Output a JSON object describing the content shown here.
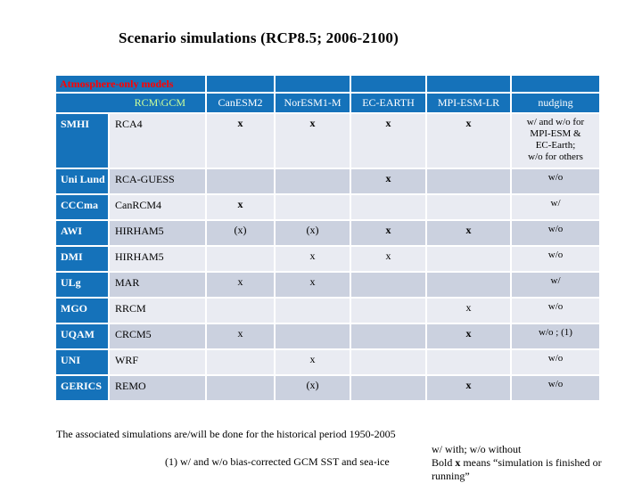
{
  "title": "Scenario simulations (RCP8.5; 2006-2100)",
  "colors": {
    "header_blue": "#1572BA",
    "band_light": "#E9EBF2",
    "band_dark": "#CBD1DF",
    "banner_red": "#FF0000",
    "corner_green": "#CCFF99",
    "text": "#000000"
  },
  "table": {
    "banner": "Atmosphere-only models",
    "corner_label": "RCM\\GCM",
    "gcm_columns": [
      "CanESM2",
      "NorESM1-M",
      "EC-EARTH",
      "MPI-ESM-LR",
      "nudging"
    ],
    "rows": [
      {
        "institute": "SMHI",
        "rcm": "RCA4",
        "cells": [
          {
            "v": "x",
            "bold": true
          },
          {
            "v": "x",
            "bold": true
          },
          {
            "v": "x",
            "bold": true
          },
          {
            "v": "x",
            "bold": true
          }
        ],
        "nudging": "w/ and w/o for\nMPI-ESM &\nEC-Earth;\nw/o for others"
      },
      {
        "institute": "Uni Lund",
        "rcm": "RCA-GUESS",
        "cells": [
          {
            "v": "",
            "bold": false
          },
          {
            "v": "",
            "bold": false
          },
          {
            "v": "x",
            "bold": true
          },
          {
            "v": "",
            "bold": false
          }
        ],
        "nudging": "w/o"
      },
      {
        "institute": "CCCma",
        "rcm": "CanRCM4",
        "cells": [
          {
            "v": "x",
            "bold": true
          },
          {
            "v": "",
            "bold": false
          },
          {
            "v": "",
            "bold": false
          },
          {
            "v": "",
            "bold": false
          }
        ],
        "nudging": "w/"
      },
      {
        "institute": "AWI",
        "rcm": "HIRHAM5",
        "cells": [
          {
            "v": "(x)",
            "bold": false
          },
          {
            "v": "(x)",
            "bold": false
          },
          {
            "v": "x",
            "bold": true
          },
          {
            "v": "x",
            "bold": true
          }
        ],
        "nudging": "w/o"
      },
      {
        "institute": "DMI",
        "rcm": "HIRHAM5",
        "cells": [
          {
            "v": "",
            "bold": false
          },
          {
            "v": "x",
            "bold": false
          },
          {
            "v": "x",
            "bold": false
          },
          {
            "v": "",
            "bold": false
          }
        ],
        "nudging": "w/o"
      },
      {
        "institute": "ULg",
        "rcm": "MAR",
        "cells": [
          {
            "v": "x",
            "bold": false
          },
          {
            "v": "x",
            "bold": false
          },
          {
            "v": "",
            "bold": false
          },
          {
            "v": "",
            "bold": false
          }
        ],
        "nudging": "w/"
      },
      {
        "institute": "MGO",
        "rcm": "RRCM",
        "cells": [
          {
            "v": "",
            "bold": false
          },
          {
            "v": "",
            "bold": false
          },
          {
            "v": "",
            "bold": false
          },
          {
            "v": "x",
            "bold": false
          }
        ],
        "nudging": "w/o"
      },
      {
        "institute": "UQAM",
        "rcm": "CRCM5",
        "cells": [
          {
            "v": "x",
            "bold": false
          },
          {
            "v": "",
            "bold": false
          },
          {
            "v": "",
            "bold": false
          },
          {
            "v": "x",
            "bold": true
          }
        ],
        "nudging": "w/o ; (1)"
      },
      {
        "institute": "UNI",
        "rcm": "WRF",
        "cells": [
          {
            "v": "",
            "bold": false
          },
          {
            "v": "x",
            "bold": false
          },
          {
            "v": "",
            "bold": false
          },
          {
            "v": "",
            "bold": false
          }
        ],
        "nudging": "w/o"
      },
      {
        "institute": "GERICS",
        "rcm": "REMO",
        "cells": [
          {
            "v": "",
            "bold": false
          },
          {
            "v": "(x)",
            "bold": false
          },
          {
            "v": "",
            "bold": false
          },
          {
            "v": "x",
            "bold": true
          }
        ],
        "nudging": "w/o"
      }
    ]
  },
  "notes": {
    "historical": "The associated simulations are/will be done for the historical period 1950-2005",
    "footnote": "(1) w/ and w/o bias-corrected GCM SST and sea-ice",
    "legend_line1": "w/ with;  w/o without",
    "legend_line2_prefix": "Bold ",
    "legend_line2_x": "x",
    "legend_line2_suffix": " means “simulation is finished or running”"
  }
}
